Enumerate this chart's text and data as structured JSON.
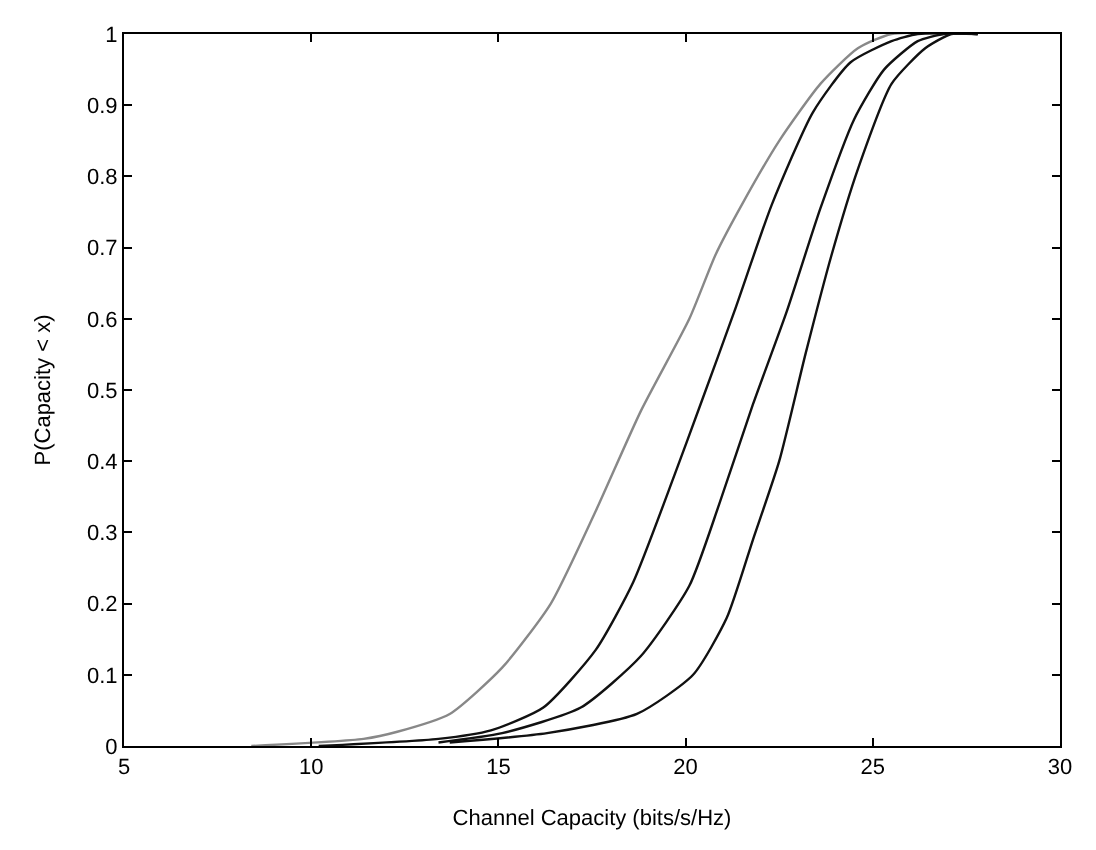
{
  "chart_data": {
    "type": "line",
    "xlabel": "Channel Capacity (bits/s/Hz)",
    "ylabel": "P(Capacity < x)",
    "xlim": [
      5,
      30
    ],
    "ylim": [
      0,
      1
    ],
    "xticks": [
      5,
      10,
      15,
      20,
      25,
      30
    ],
    "yticks": [
      0,
      0.1,
      0.2,
      0.3,
      0.4,
      0.5,
      0.6,
      0.7,
      0.8,
      0.9,
      1
    ],
    "grid": false,
    "marker": "none",
    "line_style": "solid",
    "series": [
      {
        "color": "#888888",
        "x": [
          8.4,
          11.4,
          12.3,
          13.7,
          15.1,
          16.4,
          17.6,
          18.8,
          20.1,
          20.8,
          21.5,
          22.5,
          23.6,
          24.6,
          25.5,
          27.8
        ],
        "values": [
          0,
          0.01,
          0.02,
          0.045,
          0.11,
          0.2,
          0.33,
          0.47,
          0.6,
          0.69,
          0.76,
          0.85,
          0.93,
          0.98,
          1,
          1
        ]
      },
      {
        "color": "#111111",
        "x": [
          10.2,
          13.4,
          14.8,
          16.2,
          17.6,
          18.6,
          19.7,
          20.4,
          21.3,
          22.3,
          23.4,
          24.4,
          25.5,
          26.2,
          27.8
        ],
        "values": [
          0,
          0.01,
          0.022,
          0.054,
          0.135,
          0.23,
          0.38,
          0.48,
          0.61,
          0.76,
          0.89,
          0.96,
          0.99,
          1,
          1
        ]
      },
      {
        "color": "#111111",
        "x": [
          13.4,
          15.1,
          17.2,
          18.8,
          20.1,
          20.9,
          21.8,
          22.7,
          23.6,
          24.5,
          25.3,
          26.2,
          26.9,
          27.8
        ],
        "values": [
          0.005,
          0.018,
          0.054,
          0.126,
          0.225,
          0.34,
          0.48,
          0.61,
          0.755,
          0.88,
          0.95,
          0.99,
          1,
          1
        ]
      },
      {
        "color": "#111111",
        "x": [
          13.7,
          16.3,
          18.7,
          20.2,
          21.1,
          21.8,
          22.5,
          23.2,
          23.9,
          24.6,
          25.5,
          26.4,
          27.1,
          27.8
        ],
        "values": [
          0.005,
          0.018,
          0.045,
          0.1,
          0.18,
          0.29,
          0.4,
          0.55,
          0.69,
          0.81,
          0.93,
          0.98,
          1,
          1
        ]
      }
    ]
  }
}
